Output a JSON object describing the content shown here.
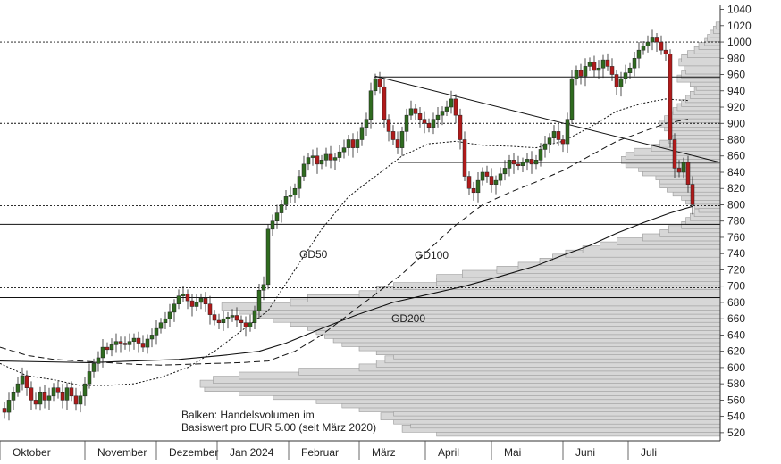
{
  "chart_data": {
    "type": "candlestick",
    "ylim": [
      510,
      1045
    ],
    "y_ticks": [
      520,
      540,
      560,
      580,
      600,
      620,
      640,
      660,
      680,
      700,
      720,
      740,
      760,
      780,
      800,
      820,
      840,
      860,
      880,
      900,
      920,
      940,
      960,
      980,
      1000,
      1020,
      1040
    ],
    "x_month_labels": [
      "Oktober",
      "November",
      "Dezember",
      "Jan 2024",
      "Februar",
      "März",
      "April",
      "Mai",
      "Juni",
      "Juli"
    ],
    "colors": {
      "up": "#2f6b1f",
      "down": "#b11a1a",
      "volume_fill": "#d7d7d7",
      "volume_stroke": "#9a9a9a",
      "line": "#111111"
    },
    "price_path": [
      [
        0,
        550
      ],
      [
        5,
        545
      ],
      [
        10,
        560
      ],
      [
        15,
        570
      ],
      [
        20,
        580
      ],
      [
        25,
        590
      ],
      [
        30,
        575
      ],
      [
        35,
        560
      ],
      [
        40,
        555
      ],
      [
        45,
        570
      ],
      [
        50,
        560
      ],
      [
        55,
        565
      ],
      [
        60,
        575
      ],
      [
        65,
        570
      ],
      [
        70,
        560
      ],
      [
        75,
        575
      ],
      [
        80,
        565
      ],
      [
        85,
        555
      ],
      [
        90,
        565
      ],
      [
        95,
        580
      ],
      [
        100,
        595
      ],
      [
        105,
        605
      ],
      [
        110,
        612
      ],
      [
        115,
        625
      ],
      [
        120,
        622
      ],
      [
        125,
        628
      ],
      [
        130,
        632
      ],
      [
        135,
        630
      ],
      [
        140,
        628
      ],
      [
        145,
        632
      ],
      [
        150,
        636
      ],
      [
        155,
        630
      ],
      [
        160,
        625
      ],
      [
        165,
        635
      ],
      [
        170,
        640
      ],
      [
        175,
        648
      ],
      [
        180,
        655
      ],
      [
        185,
        660
      ],
      [
        190,
        668
      ],
      [
        195,
        678
      ],
      [
        200,
        688
      ],
      [
        205,
        690
      ],
      [
        210,
        682
      ],
      [
        215,
        675
      ],
      [
        220,
        680
      ],
      [
        225,
        685
      ],
      [
        230,
        678
      ],
      [
        235,
        665
      ],
      [
        240,
        658
      ],
      [
        245,
        655
      ],
      [
        250,
        660
      ],
      [
        255,
        662
      ],
      [
        260,
        664
      ],
      [
        265,
        658
      ],
      [
        270,
        655
      ],
      [
        275,
        650
      ],
      [
        280,
        655
      ],
      [
        285,
        670
      ],
      [
        290,
        695
      ],
      [
        295,
        702
      ],
      [
        300,
        770
      ],
      [
        305,
        780
      ],
      [
        310,
        790
      ],
      [
        315,
        800
      ],
      [
        320,
        810
      ],
      [
        325,
        812
      ],
      [
        330,
        820
      ],
      [
        335,
        835
      ],
      [
        340,
        850
      ],
      [
        345,
        858
      ],
      [
        350,
        860
      ],
      [
        355,
        850
      ],
      [
        360,
        855
      ],
      [
        365,
        862
      ],
      [
        370,
        855
      ],
      [
        375,
        858
      ],
      [
        380,
        865
      ],
      [
        385,
        870
      ],
      [
        390,
        880
      ],
      [
        395,
        870
      ],
      [
        400,
        880
      ],
      [
        405,
        895
      ],
      [
        410,
        905
      ],
      [
        415,
        940
      ],
      [
        420,
        955
      ],
      [
        425,
        945
      ],
      [
        430,
        905
      ],
      [
        435,
        890
      ],
      [
        440,
        880
      ],
      [
        445,
        870
      ],
      [
        450,
        890
      ],
      [
        455,
        910
      ],
      [
        460,
        918
      ],
      [
        465,
        912
      ],
      [
        470,
        905
      ],
      [
        475,
        900
      ],
      [
        480,
        895
      ],
      [
        485,
        905
      ],
      [
        490,
        910
      ],
      [
        495,
        915
      ],
      [
        500,
        920
      ],
      [
        505,
        930
      ],
      [
        510,
        910
      ],
      [
        515,
        880
      ],
      [
        520,
        835
      ],
      [
        525,
        820
      ],
      [
        530,
        815
      ],
      [
        535,
        830
      ],
      [
        540,
        840
      ],
      [
        545,
        835
      ],
      [
        550,
        825
      ],
      [
        555,
        830
      ],
      [
        560,
        838
      ],
      [
        565,
        845
      ],
      [
        570,
        855
      ],
      [
        575,
        850
      ],
      [
        580,
        848
      ],
      [
        585,
        852
      ],
      [
        590,
        856
      ],
      [
        595,
        850
      ],
      [
        600,
        855
      ],
      [
        605,
        868
      ],
      [
        610,
        875
      ],
      [
        615,
        882
      ],
      [
        620,
        890
      ],
      [
        625,
        880
      ],
      [
        630,
        875
      ],
      [
        635,
        905
      ],
      [
        640,
        955
      ],
      [
        645,
        965
      ],
      [
        650,
        958
      ],
      [
        655,
        970
      ],
      [
        660,
        975
      ],
      [
        665,
        965
      ],
      [
        670,
        968
      ],
      [
        675,
        978
      ],
      [
        680,
        970
      ],
      [
        685,
        960
      ],
      [
        690,
        945
      ],
      [
        695,
        955
      ],
      [
        700,
        962
      ],
      [
        705,
        968
      ],
      [
        710,
        980
      ],
      [
        715,
        990
      ],
      [
        720,
        995
      ],
      [
        725,
        1000
      ],
      [
        730,
        1005
      ],
      [
        735,
        1000
      ],
      [
        740,
        990
      ],
      [
        745,
        985
      ],
      [
        750,
        880
      ],
      [
        755,
        845
      ],
      [
        760,
        840
      ],
      [
        765,
        852
      ],
      [
        770,
        825
      ],
      [
        775,
        800
      ]
    ],
    "gd50_path": [
      [
        0,
        605
      ],
      [
        30,
        590
      ],
      [
        60,
        585
      ],
      [
        90,
        578
      ],
      [
        120,
        578
      ],
      [
        150,
        580
      ],
      [
        180,
        588
      ],
      [
        210,
        600
      ],
      [
        240,
        620
      ],
      [
        270,
        645
      ],
      [
        300,
        670
      ],
      [
        330,
        720
      ],
      [
        360,
        770
      ],
      [
        390,
        810
      ],
      [
        420,
        835
      ],
      [
        450,
        860
      ],
      [
        480,
        875
      ],
      [
        510,
        878
      ],
      [
        540,
        873
      ],
      [
        570,
        872
      ],
      [
        600,
        870
      ],
      [
        630,
        878
      ],
      [
        660,
        895
      ],
      [
        690,
        915
      ],
      [
        720,
        925
      ],
      [
        745,
        930
      ],
      [
        770,
        928
      ]
    ],
    "gd100_path": [
      [
        0,
        625
      ],
      [
        30,
        615
      ],
      [
        60,
        610
      ],
      [
        90,
        608
      ],
      [
        120,
        606
      ],
      [
        150,
        604
      ],
      [
        180,
        603
      ],
      [
        210,
        604
      ],
      [
        240,
        605
      ],
      [
        270,
        606
      ],
      [
        300,
        608
      ],
      [
        330,
        620
      ],
      [
        360,
        640
      ],
      [
        390,
        665
      ],
      [
        420,
        690
      ],
      [
        450,
        715
      ],
      [
        480,
        745
      ],
      [
        510,
        775
      ],
      [
        540,
        800
      ],
      [
        570,
        815
      ],
      [
        600,
        828
      ],
      [
        630,
        842
      ],
      [
        660,
        860
      ],
      [
        690,
        878
      ],
      [
        720,
        890
      ],
      [
        745,
        900
      ],
      [
        770,
        905
      ]
    ],
    "gd200_path": [
      [
        0,
        608
      ],
      [
        50,
        607
      ],
      [
        100,
        606
      ],
      [
        150,
        608
      ],
      [
        200,
        610
      ],
      [
        250,
        615
      ],
      [
        290,
        620
      ],
      [
        320,
        630
      ],
      [
        360,
        648
      ],
      [
        400,
        665
      ],
      [
        440,
        680
      ],
      [
        480,
        690
      ],
      [
        520,
        700
      ],
      [
        560,
        712
      ],
      [
        600,
        725
      ],
      [
        630,
        738
      ],
      [
        660,
        750
      ],
      [
        690,
        765
      ],
      [
        720,
        778
      ],
      [
        750,
        790
      ],
      [
        775,
        798
      ]
    ],
    "hlines_dotted": [
      1000,
      900,
      799,
      698
    ],
    "hlines_solid": [
      957,
      852,
      776,
      686
    ],
    "hlines_short_solid": [
      [
        418,
        957
      ],
      [
        445,
        852
      ]
    ],
    "trendlines": [
      [
        [
          420,
          958
        ],
        [
          805,
          852
        ]
      ],
      [
        [
          0,
          686
        ],
        [
          805,
          686
        ]
      ]
    ],
    "volume_profile": [
      [
        520,
        330
      ],
      [
        525,
        370
      ],
      [
        530,
        360
      ],
      [
        535,
        380
      ],
      [
        540,
        395
      ],
      [
        545,
        380
      ],
      [
        550,
        420
      ],
      [
        555,
        440
      ],
      [
        560,
        470
      ],
      [
        565,
        520
      ],
      [
        570,
        560
      ],
      [
        575,
        600
      ],
      [
        580,
        605
      ],
      [
        585,
        590
      ],
      [
        590,
        560
      ],
      [
        595,
        490
      ],
      [
        600,
        420
      ],
      [
        605,
        400
      ],
      [
        610,
        390
      ],
      [
        615,
        380
      ],
      [
        620,
        400
      ],
      [
        625,
        420
      ],
      [
        630,
        440
      ],
      [
        635,
        450
      ],
      [
        640,
        460
      ],
      [
        645,
        470
      ],
      [
        650,
        480
      ],
      [
        655,
        500
      ],
      [
        660,
        520
      ],
      [
        665,
        540
      ],
      [
        670,
        560
      ],
      [
        675,
        580
      ],
      [
        680,
        500
      ],
      [
        685,
        480
      ],
      [
        690,
        420
      ],
      [
        695,
        400
      ],
      [
        700,
        380
      ],
      [
        705,
        330
      ],
      [
        710,
        330
      ],
      [
        715,
        300
      ],
      [
        720,
        260
      ],
      [
        725,
        235
      ],
      [
        730,
        210
      ],
      [
        735,
        195
      ],
      [
        740,
        180
      ],
      [
        745,
        160
      ],
      [
        750,
        140
      ],
      [
        755,
        120
      ],
      [
        760,
        90
      ],
      [
        765,
        70
      ],
      [
        770,
        60
      ],
      [
        775,
        45
      ],
      [
        780,
        40
      ],
      [
        785,
        35
      ],
      [
        790,
        30
      ],
      [
        795,
        25
      ],
      [
        800,
        30
      ],
      [
        805,
        40
      ],
      [
        810,
        45
      ],
      [
        815,
        55
      ],
      [
        820,
        62
      ],
      [
        825,
        70
      ],
      [
        830,
        70
      ],
      [
        835,
        75
      ],
      [
        840,
        90
      ],
      [
        845,
        95
      ],
      [
        850,
        110
      ],
      [
        855,
        115
      ],
      [
        860,
        110
      ],
      [
        865,
        100
      ],
      [
        870,
        80
      ],
      [
        875,
        70
      ],
      [
        880,
        60
      ],
      [
        885,
        55
      ],
      [
        890,
        60
      ],
      [
        895,
        65
      ],
      [
        900,
        70
      ],
      [
        905,
        65
      ],
      [
        910,
        60
      ],
      [
        915,
        55
      ],
      [
        920,
        50
      ],
      [
        925,
        45
      ],
      [
        930,
        40
      ],
      [
        935,
        35
      ],
      [
        940,
        30
      ],
      [
        945,
        28
      ],
      [
        950,
        35
      ],
      [
        955,
        50
      ],
      [
        960,
        45
      ],
      [
        965,
        40
      ],
      [
        970,
        42
      ],
      [
        975,
        48
      ],
      [
        980,
        45
      ],
      [
        985,
        38
      ],
      [
        990,
        30
      ],
      [
        995,
        25
      ],
      [
        1000,
        18
      ],
      [
        1005,
        15
      ],
      [
        1010,
        12
      ],
      [
        1015,
        8
      ],
      [
        1020,
        5
      ]
    ],
    "line_labels": [
      {
        "text": "GD50",
        "ref": "gd50"
      },
      {
        "text": "GD100",
        "ref": "gd100"
      },
      {
        "text": "GD200",
        "ref": "gd200"
      }
    ],
    "annotation_lines": [
      "Balken: Handelsvolumen im",
      "Basiswert pro EUR 5.00 (seit März 2020)"
    ]
  }
}
